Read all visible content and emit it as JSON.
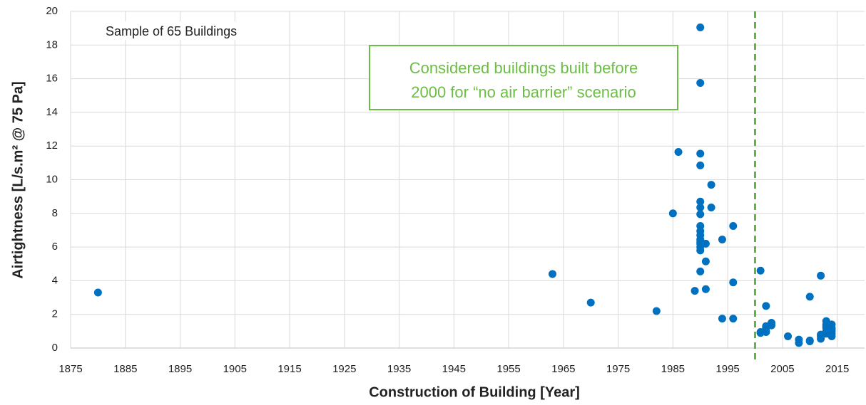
{
  "chart_data": {
    "type": "scatter",
    "xlabel": "Construction of Building [Year]",
    "ylabel": "Airtightness [L/s.m² @ 75 Pa]",
    "sample_note": "Sample of 65 Buildings",
    "annotation": {
      "lines": [
        "Considered buildings built before",
        "2000 for “no air barrier” scenario"
      ],
      "color": "#6cbd45"
    },
    "reference_line": {
      "x": 2000,
      "color": "#5cb545",
      "dashed": true
    },
    "color": "#0070c0",
    "x": [
      1880,
      1963,
      1970,
      1982,
      1985,
      1986,
      1989,
      1990,
      1990,
      1990,
      1990,
      1990,
      1990,
      1990,
      1990,
      1990,
      1990,
      1990,
      1990,
      1990,
      1990,
      1990,
      1990,
      1991,
      1991,
      1991,
      1992,
      1992,
      1994,
      1994,
      1996,
      1996,
      1996,
      2001,
      2001,
      2001,
      2002,
      2002,
      2002,
      2002,
      2002,
      2003,
      2003,
      2006,
      2008,
      2008,
      2010,
      2010,
      2010,
      2012,
      2012,
      2012,
      2012,
      2013,
      2013,
      2013,
      2013,
      2013,
      2013,
      2014,
      2014,
      2014,
      2014,
      2014,
      2014
    ],
    "values": [
      3.3,
      4.4,
      2.7,
      2.2,
      8.0,
      11.65,
      3.4,
      19.05,
      15.75,
      11.55,
      10.85,
      8.7,
      8.35,
      7.95,
      7.25,
      6.95,
      6.7,
      6.45,
      6.3,
      6.2,
      6.0,
      5.8,
      4.55,
      6.2,
      5.15,
      3.5,
      9.7,
      8.35,
      6.45,
      1.75,
      7.25,
      3.9,
      1.75,
      4.6,
      0.95,
      0.9,
      2.5,
      1.3,
      1.2,
      1.0,
      0.95,
      1.5,
      1.35,
      0.7,
      0.5,
      0.3,
      3.05,
      0.45,
      0.4,
      4.3,
      0.8,
      0.7,
      0.55,
      1.6,
      1.4,
      1.3,
      1.2,
      1.0,
      0.85,
      1.4,
      1.2,
      1.1,
      1.0,
      0.85,
      0.7
    ],
    "xlim": [
      1875,
      2020
    ],
    "xticks": [
      1875,
      1885,
      1895,
      1905,
      1915,
      1925,
      1935,
      1945,
      1955,
      1965,
      1975,
      1985,
      1995,
      2005,
      2015
    ],
    "ylim": [
      0,
      20
    ],
    "yticks": [
      0,
      2,
      4,
      6,
      8,
      10,
      12,
      14,
      16,
      18,
      20
    ],
    "grid": true
  }
}
